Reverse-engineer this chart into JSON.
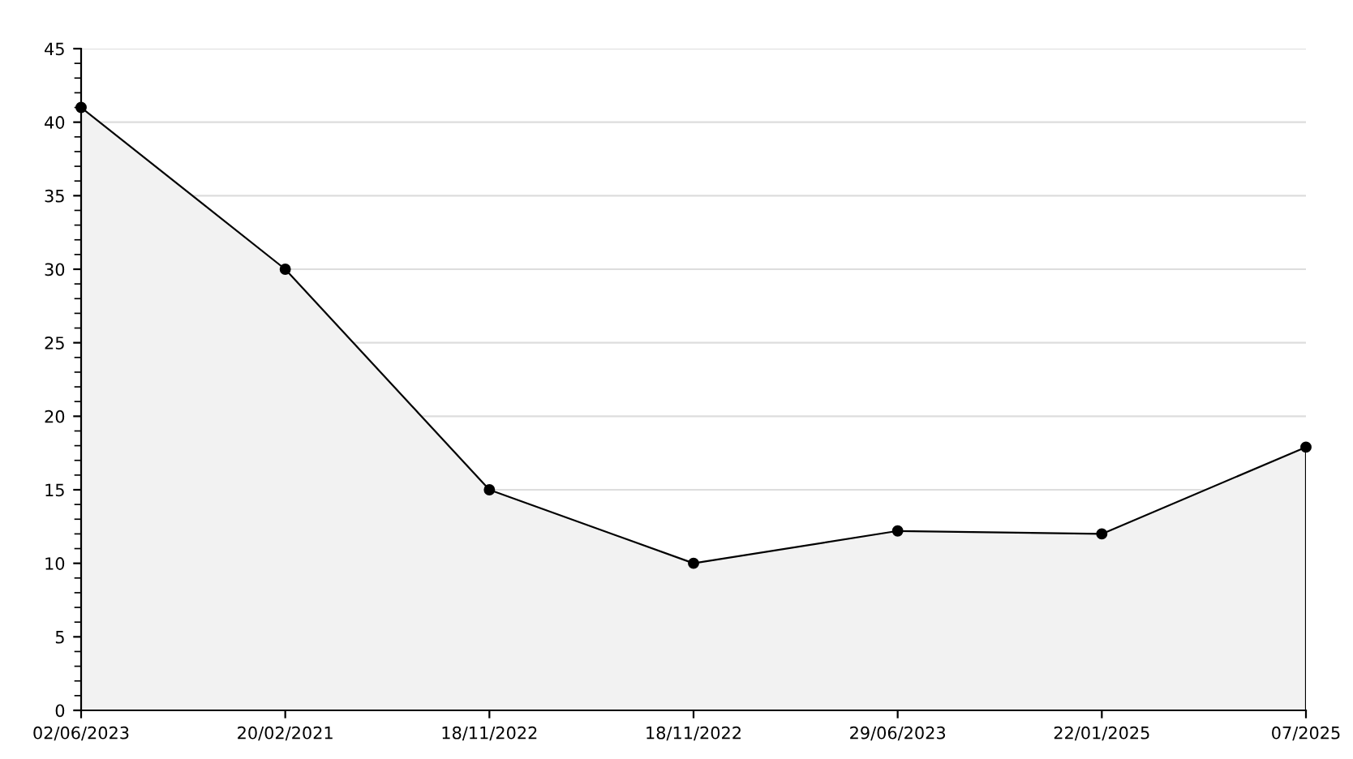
{
  "chart_data": {
    "type": "area",
    "categories": [
      "02/06/2023",
      "20/02/2021",
      "18/11/2022",
      "18/11/2022",
      "29/06/2023",
      "22/01/2025",
      "07/2025"
    ],
    "series": [
      {
        "color": "#000000",
        "values": [
          41,
          30,
          15,
          10,
          12.2,
          12,
          17.9
        ]
      }
    ],
    "ylim": [
      0,
      45
    ],
    "yticks": [
      0,
      5,
      10,
      15,
      20,
      25,
      30,
      35,
      40,
      45
    ],
    "grid": "y",
    "marker": "circle",
    "line_style": "solid"
  }
}
